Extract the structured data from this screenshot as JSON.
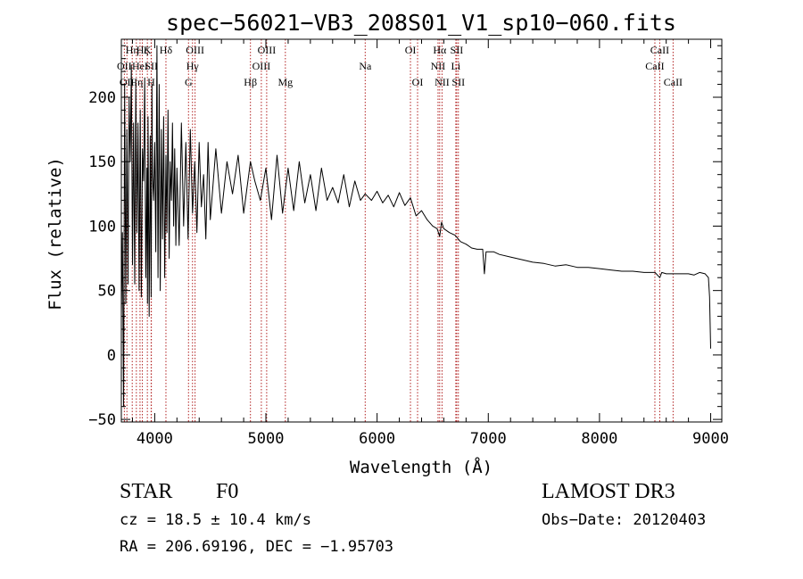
{
  "chart_data": {
    "type": "line",
    "title": "spec−56021−VB3_208S01_V1_sp10−060.fits",
    "xlabel": "Wavelength (Å)",
    "ylabel": "Flux (relative)",
    "xlim": [
      3700,
      9100
    ],
    "ylim": [
      -52,
      245
    ],
    "x_ticks": [
      {
        "value": 4000,
        "label": "4000"
      },
      {
        "value": 5000,
        "label": "5000"
      },
      {
        "value": 6000,
        "label": "6000"
      },
      {
        "value": 7000,
        "label": "7000"
      },
      {
        "value": 8000,
        "label": "8000"
      },
      {
        "value": 9000,
        "label": "9000"
      }
    ],
    "y_ticks": [
      {
        "value": -50,
        "label": "−50"
      },
      {
        "value": 0,
        "label": "0"
      },
      {
        "value": 50,
        "label": "50"
      },
      {
        "value": 100,
        "label": "100"
      },
      {
        "value": 150,
        "label": "150"
      },
      {
        "value": 200,
        "label": "200"
      }
    ],
    "series": [
      {
        "name": "spectrum",
        "x": [
          3700,
          3710,
          3720,
          3730,
          3740,
          3750,
          3760,
          3770,
          3780,
          3790,
          3800,
          3810,
          3820,
          3830,
          3840,
          3850,
          3860,
          3870,
          3880,
          3890,
          3900,
          3910,
          3920,
          3930,
          3935,
          3940,
          3950,
          3960,
          3968,
          3975,
          3980,
          3990,
          4000,
          4010,
          4020,
          4030,
          4040,
          4050,
          4060,
          4070,
          4080,
          4090,
          4101,
          4110,
          4120,
          4130,
          4140,
          4150,
          4160,
          4170,
          4180,
          4190,
          4200,
          4220,
          4240,
          4260,
          4280,
          4300,
          4320,
          4340,
          4360,
          4380,
          4400,
          4420,
          4440,
          4460,
          4480,
          4500,
          4550,
          4600,
          4650,
          4700,
          4750,
          4800,
          4861,
          4900,
          4950,
          5000,
          5050,
          5100,
          5150,
          5200,
          5250,
          5300,
          5350,
          5400,
          5450,
          5500,
          5550,
          5600,
          5650,
          5700,
          5750,
          5800,
          5850,
          5893,
          5950,
          6000,
          6050,
          6100,
          6150,
          6200,
          6250,
          6300,
          6350,
          6400,
          6450,
          6500,
          6540,
          6563,
          6580,
          6600,
          6650,
          6700,
          6750,
          6800,
          6850,
          6900,
          6950,
          6965,
          6980,
          7050,
          7100,
          7200,
          7300,
          7400,
          7500,
          7600,
          7700,
          7800,
          7900,
          8000,
          8100,
          8200,
          8300,
          8400,
          8500,
          8542,
          8560,
          8600,
          8700,
          8800,
          8850,
          8900,
          8950,
          8980,
          8990,
          9000
        ],
        "y": [
          30,
          95,
          -40,
          210,
          40,
          175,
          55,
          200,
          150,
          225,
          70,
          180,
          55,
          210,
          95,
          180,
          50,
          190,
          45,
          160,
          135,
          215,
          60,
          145,
          40,
          185,
          30,
          170,
          45,
          210,
          140,
          120,
          165,
          80,
          240,
          60,
          210,
          50,
          175,
          90,
          185,
          60,
          155,
          95,
          190,
          75,
          150,
          120,
          180,
          100,
          160,
          85,
          145,
          85,
          180,
          100,
          165,
          90,
          175,
          110,
          150,
          95,
          165,
          115,
          140,
          90,
          165,
          105,
          160,
          110,
          150,
          125,
          155,
          110,
          150,
          135,
          120,
          145,
          105,
          155,
          110,
          145,
          112,
          150,
          118,
          140,
          112,
          145,
          120,
          130,
          118,
          140,
          115,
          135,
          120,
          125,
          120,
          127,
          118,
          124,
          115,
          126,
          116,
          122,
          108,
          112,
          105,
          100,
          98,
          92,
          103,
          98,
          95,
          93,
          88,
          86,
          83,
          82,
          82,
          63,
          80,
          80,
          78,
          76,
          74,
          72,
          71,
          69,
          70,
          68,
          68,
          67,
          66,
          65,
          65,
          64,
          64,
          60,
          64,
          63,
          63,
          63,
          62,
          64,
          63,
          60,
          45,
          5
        ]
      }
    ],
    "lines": [
      {
        "wavelength": 3727,
        "label": "OII",
        "row": 2
      },
      {
        "wavelength": 3750,
        "label": "OII",
        "row": 3
      },
      {
        "wavelength": 3798,
        "label": "Hη",
        "row": 1
      },
      {
        "wavelength": 3835,
        "label": "Hη",
        "row": 3
      },
      {
        "wavelength": 3868,
        "label": "HeI",
        "row": 2
      },
      {
        "wavelength": 3889,
        "label": "Hζ",
        "row": 1
      },
      {
        "wavelength": 3934,
        "label": "K",
        "row": 1
      },
      {
        "wavelength": 3968,
        "label": "H",
        "row": 3
      },
      {
        "wavelength": 3970,
        "label": "SII",
        "row": 2
      },
      {
        "wavelength": 4101,
        "label": "Hδ",
        "row": 1
      },
      {
        "wavelength": 4304,
        "label": "G",
        "row": 3
      },
      {
        "wavelength": 4340,
        "label": "Hγ",
        "row": 2
      },
      {
        "wavelength": 4363,
        "label": "OIII",
        "row": 1
      },
      {
        "wavelength": 4861,
        "label": "Hβ",
        "row": 3
      },
      {
        "wavelength": 4959,
        "label": "OIII",
        "row": 2
      },
      {
        "wavelength": 5007,
        "label": "OIII",
        "row": 1
      },
      {
        "wavelength": 5175,
        "label": "Mg",
        "row": 3
      },
      {
        "wavelength": 5893,
        "label": "Na",
        "row": 2
      },
      {
        "wavelength": 6300,
        "label": "OI",
        "row": 1
      },
      {
        "wavelength": 6364,
        "label": "OI",
        "row": 3
      },
      {
        "wavelength": 6548,
        "label": "NII",
        "row": 2
      },
      {
        "wavelength": 6563,
        "label": "Hα",
        "row": 1
      },
      {
        "wavelength": 6584,
        "label": "NII",
        "row": 3
      },
      {
        "wavelength": 6708,
        "label": "Li",
        "row": 2
      },
      {
        "wavelength": 6716,
        "label": "SII",
        "row": 1
      },
      {
        "wavelength": 6731,
        "label": "SII",
        "row": 3
      },
      {
        "wavelength": 8498,
        "label": "CaII",
        "row": 2
      },
      {
        "wavelength": 8542,
        "label": "CaII",
        "row": 1
      },
      {
        "wavelength": 8662,
        "label": "CaII",
        "row": 3
      }
    ],
    "grid": false,
    "legend": "none"
  },
  "info": {
    "object_class": "STAR",
    "subclass": "F0",
    "survey": "LAMOST DR3",
    "cz": "cz = 18.5 ± 10.4 km/s",
    "obs_date": "Obs−Date: 20120403",
    "coords": "RA = 206.69196, DEC =  −1.95703"
  },
  "colors": {
    "spectrum": "#000000",
    "line_markers": "#b22222",
    "axes": "#000000"
  }
}
